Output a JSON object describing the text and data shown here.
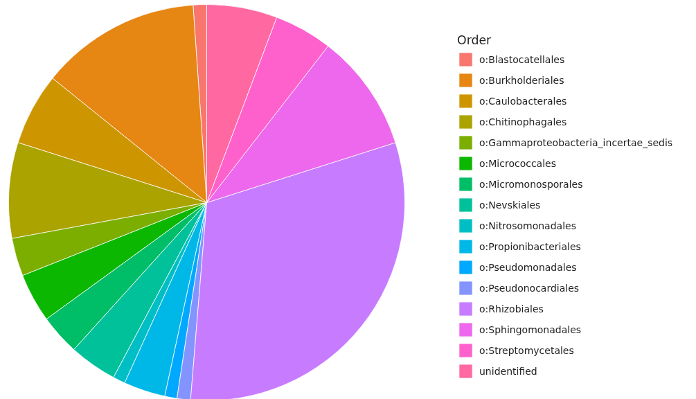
{
  "chart_data": {
    "type": "pie",
    "legend_title": "Order",
    "legend": "right",
    "categories": [
      "o:Blastocatellales",
      "o:Burkholderiales",
      "o:Caulobacterales",
      "o:Chitinophagales",
      "o:Gammaproteobacteria_incertae_sedis",
      "o:Micrococcales",
      "o:Micromonosporales",
      "o:Nevskiales",
      "o:Nitrosomonadales",
      "o:Propionibacteriales",
      "o:Pseudomonadales",
      "o:Pseudonocardiales",
      "o:Rhizobiales",
      "o:Sphingomonadales",
      "o:Streptomycetales",
      "unidentified"
    ],
    "values": [
      1.1,
      13.1,
      5.9,
      7.8,
      3.1,
      4.0,
      3.3,
      3.9,
      1.0,
      3.4,
      1.0,
      1.1,
      31.2,
      9.6,
      4.75,
      5.75
    ],
    "colors": [
      "#F8766D",
      "#E68613",
      "#CD9600",
      "#ABA300",
      "#7CAE00",
      "#0CB702",
      "#00BE67",
      "#00C19A",
      "#00BFC4",
      "#00B8E7",
      "#00A9FF",
      "#8494FF",
      "#C77CFF",
      "#ED68ED",
      "#FF61CC",
      "#FF68A1"
    ]
  }
}
